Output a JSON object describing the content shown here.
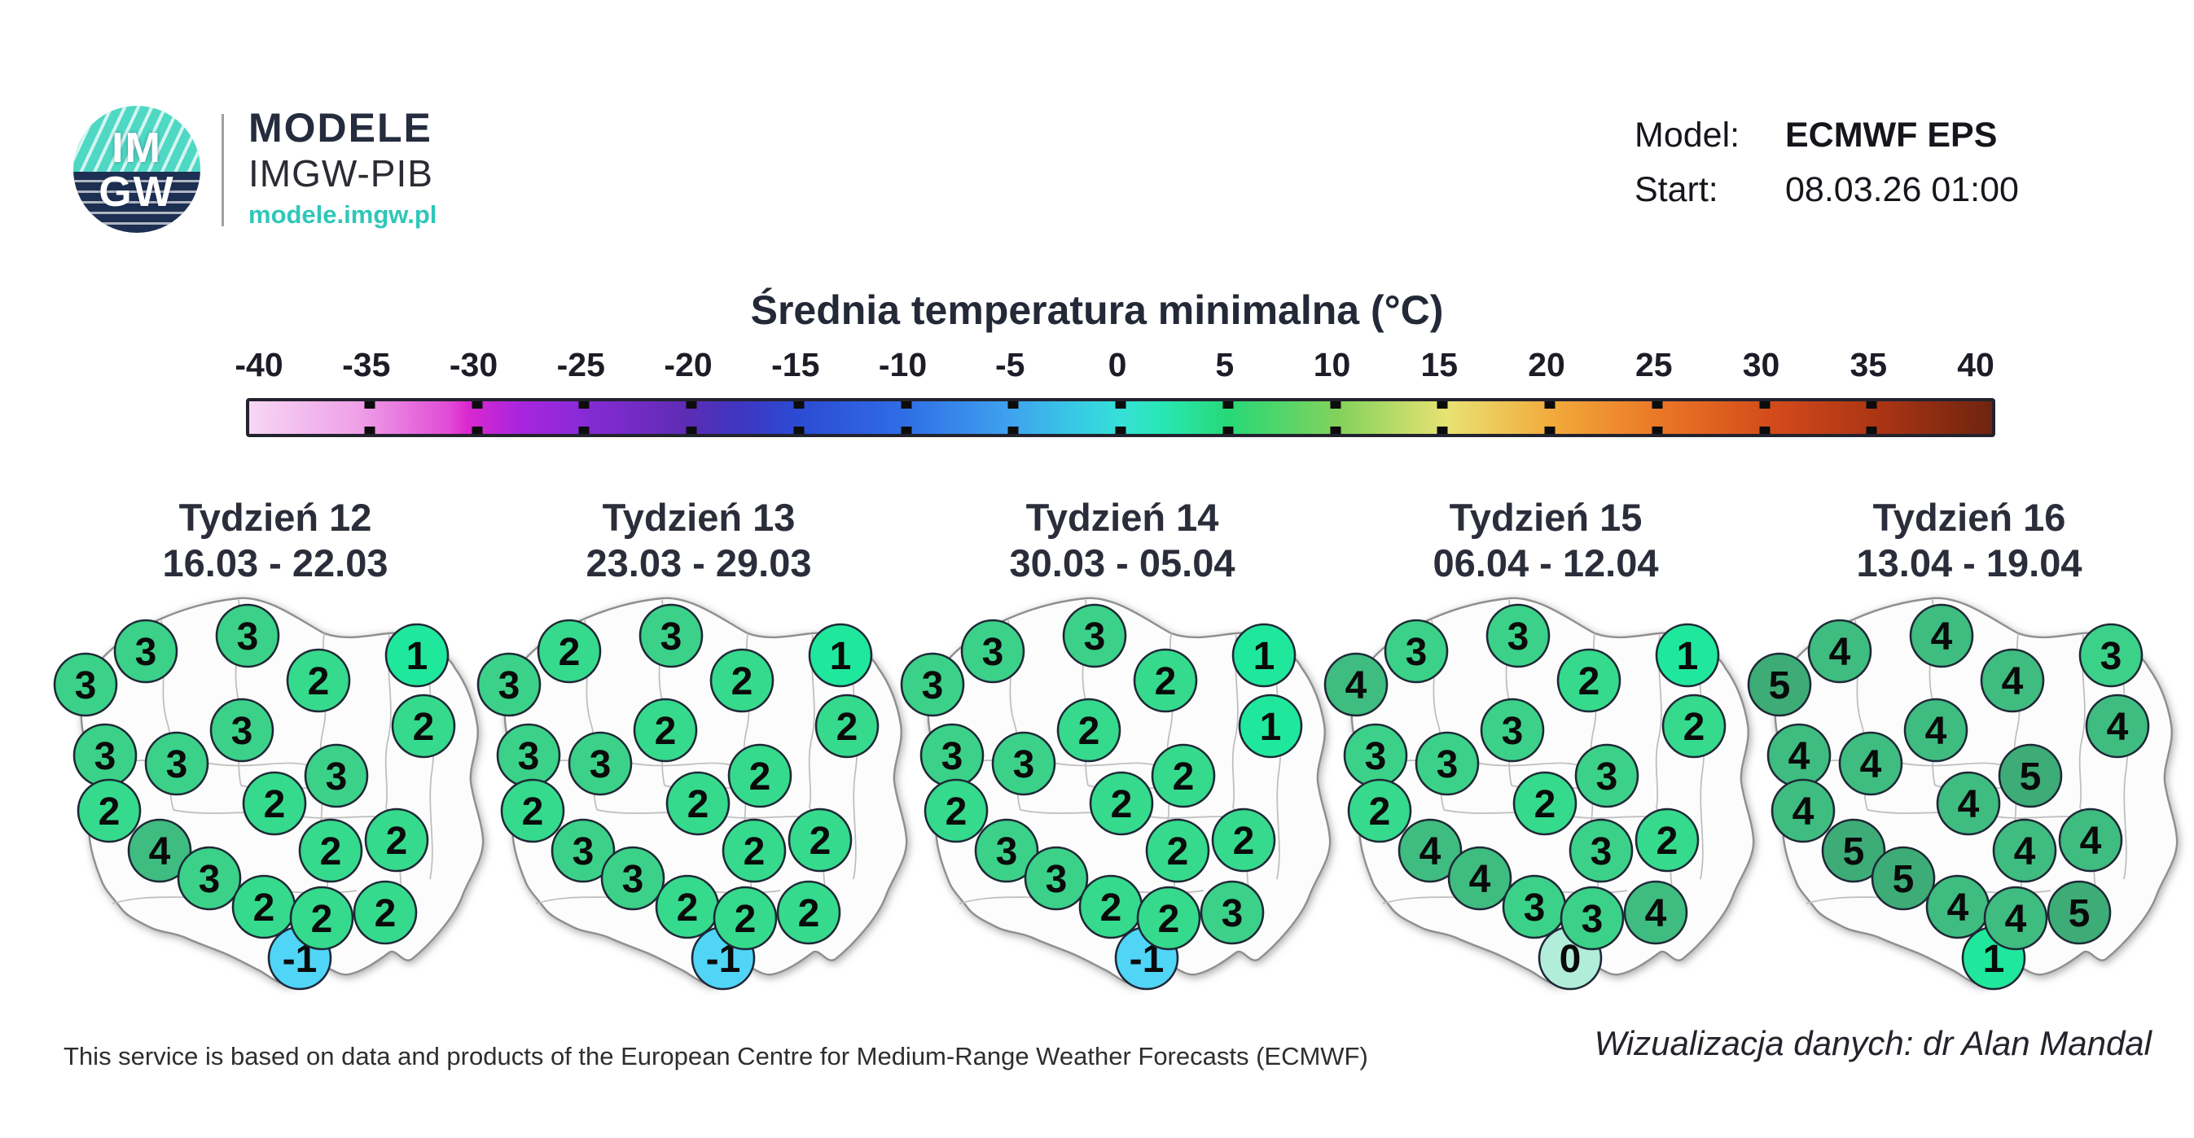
{
  "header": {
    "logo_im": "IM",
    "logo_gw": "GW",
    "brand_title": "MODELE",
    "brand_subtitle": "IMGW-PIB",
    "brand_url": "modele.imgw.pl",
    "model_label": "Model:",
    "model_value": "ECMWF EPS",
    "start_label": "Start:",
    "start_value": "08.03.26 01:00"
  },
  "chart_data": {
    "type": "heatmap",
    "subtype": "multi-panel-map-markers",
    "title": "Średnia temperatura minimalna (°C)",
    "unit": "°C",
    "colorbar": {
      "min": -40,
      "max": 40,
      "tick_labels": [
        "-40",
        "-35",
        "-30",
        "-25",
        "-20",
        "-15",
        "-10",
        "-5",
        "0",
        "5",
        "10",
        "15",
        "20",
        "25",
        "30",
        "35",
        "40"
      ],
      "gradient_stops": [
        [
          0.0,
          "#f6d7f4"
        ],
        [
          0.0625,
          "#efa0e8"
        ],
        [
          0.115,
          "#e14ad6"
        ],
        [
          0.125,
          "#db28cf"
        ],
        [
          0.156,
          "#a825dd"
        ],
        [
          0.1875,
          "#8b2ad8"
        ],
        [
          0.25,
          "#5e2cb4"
        ],
        [
          0.28,
          "#3f35c0"
        ],
        [
          0.3125,
          "#2c49d2"
        ],
        [
          0.375,
          "#2f6de6"
        ],
        [
          0.4375,
          "#3fa3ee"
        ],
        [
          0.47,
          "#38c6e6"
        ],
        [
          0.5,
          "#36e0d8"
        ],
        [
          0.525,
          "#28e7b2"
        ],
        [
          0.5625,
          "#27d876"
        ],
        [
          0.625,
          "#83d25c"
        ],
        [
          0.6875,
          "#e8e273"
        ],
        [
          0.75,
          "#f2a83a"
        ],
        [
          0.8125,
          "#ea7426"
        ],
        [
          0.875,
          "#d24a1a"
        ],
        [
          0.9375,
          "#a93413"
        ],
        [
          1.0,
          "#6f2410"
        ]
      ]
    },
    "value_colors": {
      "-1": "#50d5f7",
      "0": "#b2edd9",
      "1": "#1fe89c",
      "2": "#35da8d",
      "3": "#3bd189",
      "4": "#3fbc80",
      "5": "#3dac77"
    },
    "station_positions": [
      [
        27,
        141
      ],
      [
        101,
        100
      ],
      [
        226,
        81
      ],
      [
        313,
        136
      ],
      [
        434,
        105
      ],
      [
        51,
        228
      ],
      [
        139,
        238
      ],
      [
        219,
        197
      ],
      [
        442,
        192
      ],
      [
        56,
        296
      ],
      [
        118,
        345
      ],
      [
        259,
        287
      ],
      [
        335,
        253
      ],
      [
        328,
        345
      ],
      [
        409,
        332
      ],
      [
        179,
        379
      ],
      [
        246,
        414
      ],
      [
        317,
        428
      ],
      [
        395,
        421
      ],
      [
        290,
        477
      ]
    ],
    "weeks": [
      {
        "label": "Tydzień 12",
        "dates": "16.03 - 22.03",
        "values": [
          3,
          3,
          3,
          2,
          1,
          3,
          3,
          3,
          2,
          2,
          4,
          2,
          3,
          2,
          2,
          3,
          2,
          2,
          2,
          -1
        ]
      },
      {
        "label": "Tydzień 13",
        "dates": "23.03 - 29.03",
        "values": [
          3,
          2,
          3,
          2,
          1,
          3,
          3,
          2,
          2,
          2,
          3,
          2,
          2,
          2,
          2,
          3,
          2,
          2,
          2,
          -1
        ]
      },
      {
        "label": "Tydzień 14",
        "dates": "30.03 - 05.04",
        "values": [
          3,
          3,
          3,
          2,
          1,
          3,
          3,
          2,
          1,
          2,
          3,
          2,
          2,
          2,
          2,
          3,
          2,
          2,
          3,
          -1
        ]
      },
      {
        "label": "Tydzień 15",
        "dates": "06.04 - 12.04",
        "values": [
          4,
          3,
          3,
          2,
          1,
          3,
          3,
          3,
          2,
          2,
          4,
          2,
          3,
          3,
          2,
          4,
          3,
          3,
          4,
          0
        ]
      },
      {
        "label": "Tydzień 16",
        "dates": "13.04 - 19.04",
        "values": [
          5,
          4,
          4,
          4,
          3,
          4,
          4,
          4,
          4,
          4,
          5,
          4,
          5,
          4,
          4,
          5,
          4,
          4,
          5,
          1
        ]
      }
    ],
    "legend_position": "top",
    "grid": false
  },
  "footer": {
    "attribution": "This service is based on data and products of the European Centre for Medium-Range Weather Forecasts (ECMWF)",
    "credit": "Wizualizacja danych: dr Alan Mandal"
  }
}
